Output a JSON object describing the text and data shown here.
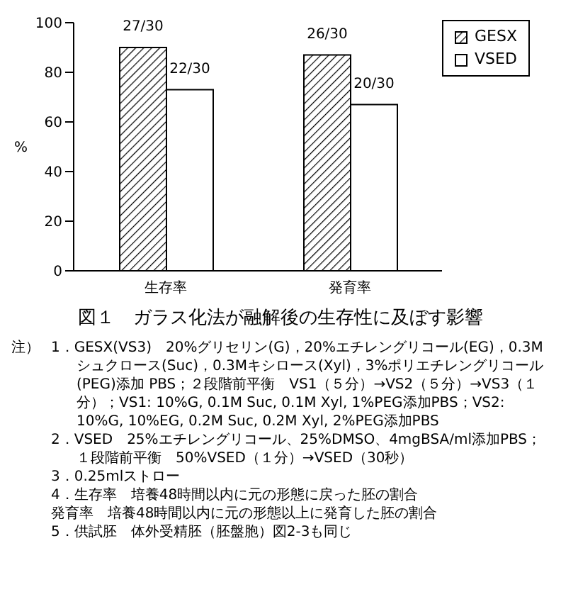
{
  "chart_data": {
    "type": "bar",
    "title": "図１　ガラス化法が融解後の生存性に及ぼす影響",
    "ylabel": "%",
    "categories": [
      "生存率",
      "発育率"
    ],
    "series": [
      {
        "name": "GESX",
        "color": "#000000",
        "values": [
          90,
          87
        ],
        "value_labels": [
          "27/30",
          "26/30"
        ]
      },
      {
        "name": "VSED",
        "color": "#ffffff",
        "values": [
          73,
          67
        ],
        "value_labels": [
          "22/30",
          "20/30"
        ]
      }
    ],
    "ylim": [
      0,
      100
    ],
    "yticks": [
      0,
      20,
      40,
      60,
      80,
      100
    ],
    "grid": false,
    "legend": "top right",
    "annotations": [
      "注）",
      "1．GESX(VS3)　20%グリセリン(G)，20%エチレングリコール(EG)，0.3Mシュクロース(Suc)，0.3Mキシロース(Xyl)，3%ポリエチレングリコール(PEG)添加 PBS；２段階前平衡　VS1（５分）→VS2（５分）→VS3（１分）；VS1: 10%G, 0.1M Suc, 0.1M Xyl, 1%PEG添加PBS；VS2: 10%G, 10%EG, 0.2M Suc, 0.2M Xyl, 2%PEG添加PBS",
      "2．VSED　25%エチレングリコール、25%DMSO、4mgBSA/ml添加PBS；１段階前平衡　50%VSED（１分）→VSED（30秒）",
      "3．0.25mlストロー",
      "4．生存率　培養48時間以内に元の形態に戻った胚の割合",
      "発育率　培養48時間以内に元の形態以上に発育した胚の割合",
      "5．供試胚　体外受精胚（胚盤胞）図2-3も同じ"
    ]
  }
}
